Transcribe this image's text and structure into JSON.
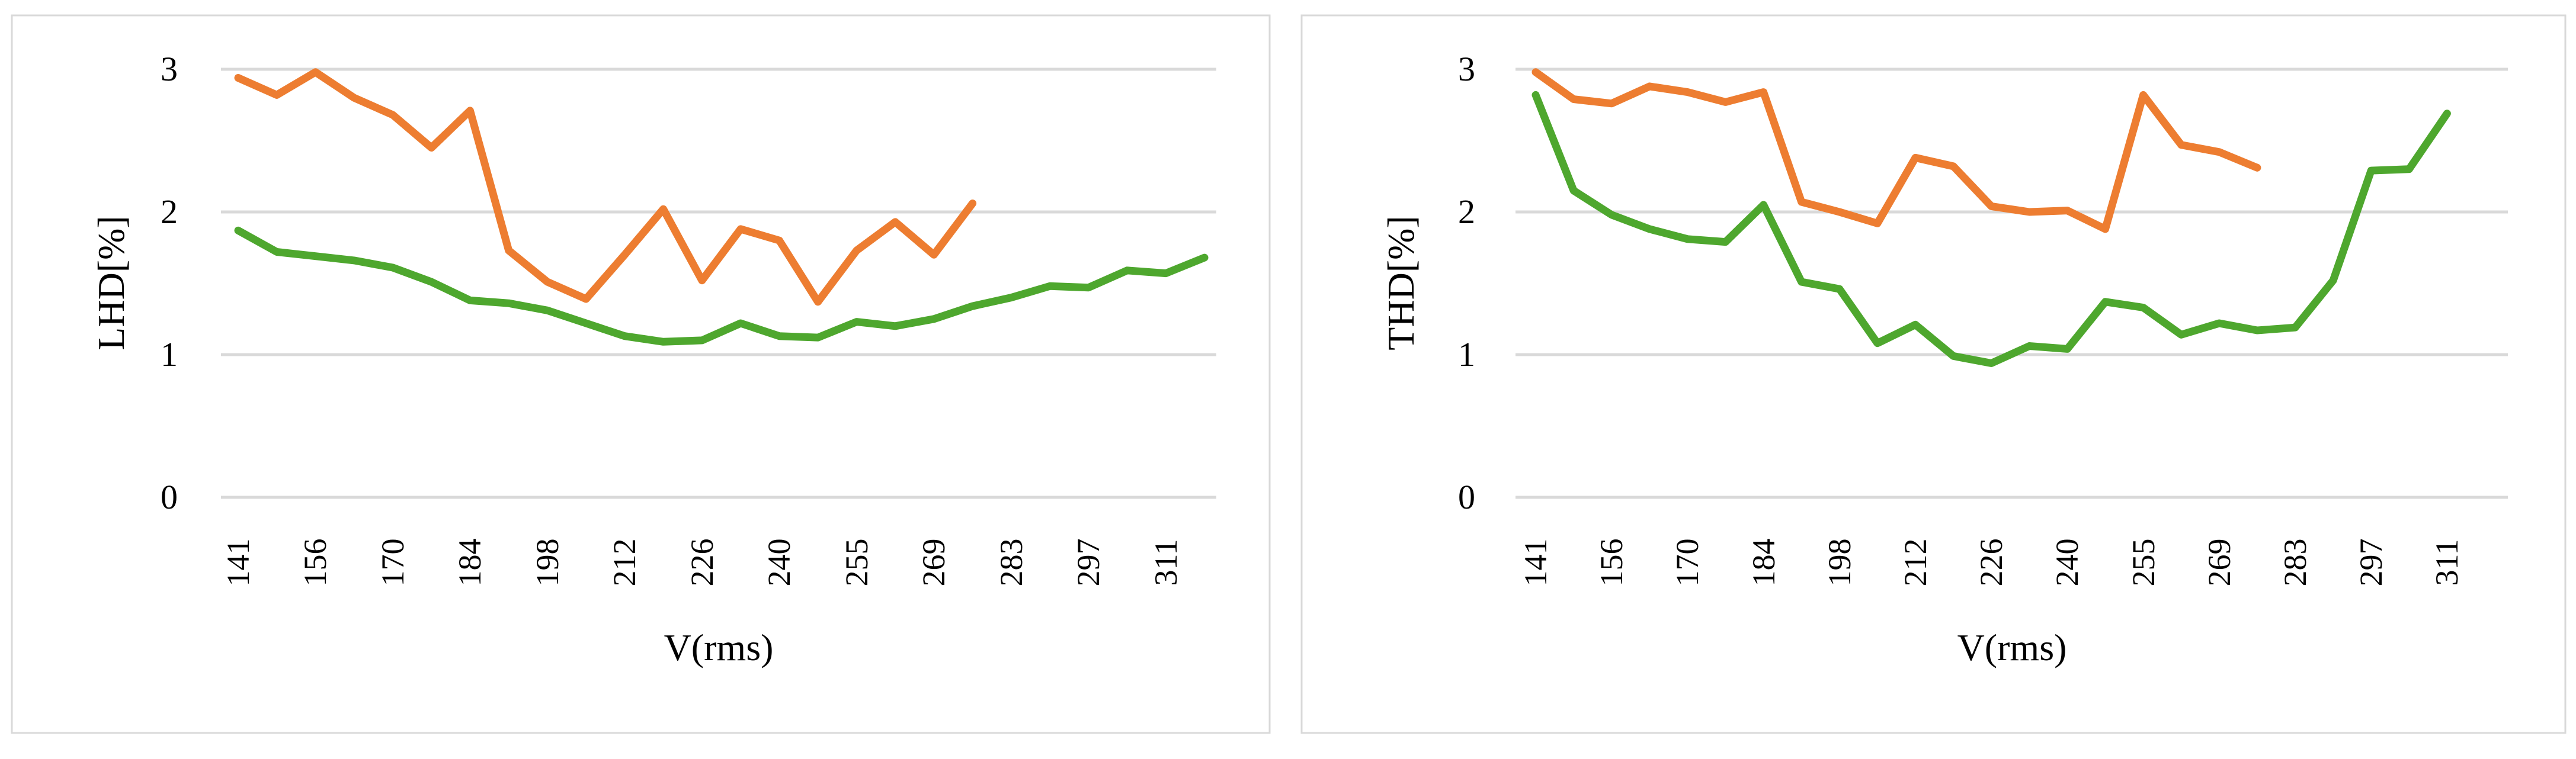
{
  "colors": {
    "background": "#ffffff",
    "series_orange": "#ED7D31",
    "series_green": "#4EA72E",
    "gridline": "#D9D9D9",
    "panel_border": "#D9D9D9",
    "text": "#000000"
  },
  "chart_data": [
    {
      "type": "line",
      "title": "",
      "ylabel": "LHD[%]",
      "xlabel": "V(rms)",
      "ylim": [
        0,
        3.2
      ],
      "yticks": [
        0,
        1,
        2,
        3
      ],
      "grid": true,
      "legend": "none",
      "categories": [
        141,
        148,
        156,
        163,
        170,
        177,
        184,
        191,
        198,
        205,
        212,
        219,
        226,
        233,
        240,
        247,
        255,
        262,
        269,
        276,
        283,
        290,
        297,
        304,
        311,
        318
      ],
      "x_tick_labels": [
        "141",
        "156",
        "170",
        "184",
        "198",
        "212",
        "226",
        "240",
        "255",
        "269",
        "283",
        "297",
        "311"
      ],
      "series": [
        {
          "name": "orange",
          "color_key": "series_orange",
          "values": [
            2.94,
            2.82,
            2.98,
            2.8,
            2.68,
            2.45,
            2.71,
            1.73,
            1.51,
            1.39,
            1.7,
            2.02,
            1.52,
            1.88,
            1.8,
            1.37,
            1.73,
            1.93,
            1.7,
            2.06
          ]
        },
        {
          "name": "green",
          "color_key": "series_green",
          "values": [
            1.87,
            1.72,
            1.69,
            1.66,
            1.61,
            1.51,
            1.38,
            1.36,
            1.31,
            1.22,
            1.13,
            1.09,
            1.1,
            1.22,
            1.13,
            1.12,
            1.23,
            1.2,
            1.25,
            1.34,
            1.4,
            1.48,
            1.47,
            1.59,
            1.57,
            1.68
          ]
        }
      ]
    },
    {
      "type": "line",
      "title": "",
      "ylabel": "THD[%]",
      "xlabel": "V(rms)",
      "ylim": [
        0,
        3.2
      ],
      "yticks": [
        0,
        1,
        2,
        3
      ],
      "grid": true,
      "legend": "none",
      "categories": [
        141,
        148,
        156,
        163,
        170,
        177,
        184,
        191,
        198,
        205,
        212,
        219,
        226,
        233,
        240,
        247,
        255,
        262,
        269,
        276,
        283,
        290,
        297,
        304,
        311,
        318
      ],
      "x_tick_labels": [
        "141",
        "156",
        "170",
        "184",
        "198",
        "212",
        "226",
        "240",
        "255",
        "269",
        "283",
        "297",
        "311"
      ],
      "series": [
        {
          "name": "orange",
          "color_key": "series_orange",
          "values": [
            2.98,
            2.79,
            2.76,
            2.88,
            2.84,
            2.77,
            2.84,
            2.07,
            2.0,
            1.92,
            2.38,
            2.32,
            2.04,
            2.0,
            2.01,
            1.88,
            2.82,
            2.47,
            2.42,
            2.31
          ]
        },
        {
          "name": "green",
          "color_key": "series_green",
          "values": [
            2.82,
            2.15,
            1.98,
            1.88,
            1.81,
            1.79,
            2.05,
            1.51,
            1.46,
            1.08,
            1.21,
            0.99,
            0.94,
            1.06,
            1.04,
            1.37,
            1.33,
            1.14,
            1.22,
            1.17,
            1.19,
            1.52,
            2.29,
            2.3,
            2.69
          ]
        }
      ]
    }
  ]
}
